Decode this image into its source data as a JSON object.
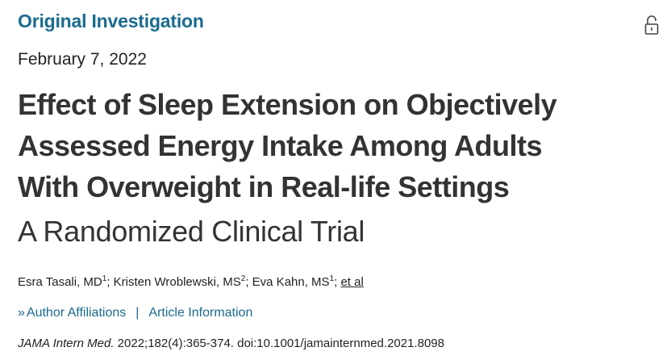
{
  "article": {
    "category": "Original Investigation",
    "date": "February 7, 2022",
    "title_lines": [
      "Effect of Sleep Extension on Objectively",
      "Assessed Energy Intake Among Adults",
      "With Overweight in Real-life Settings"
    ],
    "subtitle": "A Randomized Clinical Trial",
    "authors": [
      {
        "name": "Esra Tasali, MD",
        "aff": "1",
        "sep": "; "
      },
      {
        "name": "Kristen Wroblewski, MS",
        "aff": "2",
        "sep": "; "
      },
      {
        "name": "Eva Kahn, MS",
        "aff": "1",
        "sep": "; "
      }
    ],
    "et_al": "et al",
    "links": {
      "chevron": "»",
      "author_affiliations": "Author Affiliations",
      "separator": "|",
      "article_information": "Article Information"
    },
    "citation": {
      "journal": "JAMA Intern Med.",
      "details": " 2022;182(4):365-374. doi:10.1001/jamainternmed.2021.8098"
    },
    "icons": {
      "access": "unlocked-padlock-icon"
    }
  }
}
